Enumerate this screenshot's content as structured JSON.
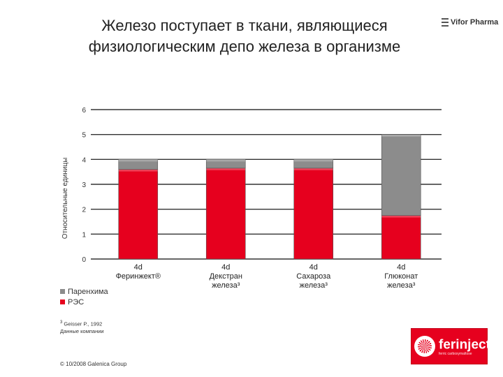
{
  "header": {
    "title_line1": "Железо поступает в ткани, являющиеся",
    "title_line2": "физиологическим депо железа в организме",
    "brand": "Vifor Pharma",
    "brand_icon": "menu-lines-icon"
  },
  "chart_data": {
    "type": "bar",
    "stacked": true,
    "ylabel": "Относительные единицы",
    "ylim": [
      0,
      6
    ],
    "yticks": [
      "0",
      "1",
      "2",
      "3",
      "4",
      "5",
      "6"
    ],
    "grid": true,
    "categories": [
      {
        "line1": "4d",
        "line2": "Феринжект®",
        "line3": ""
      },
      {
        "line1": "4d",
        "line2": "Декстран",
        "line3": "железа³"
      },
      {
        "line1": "4d",
        "line2": "Сахароза",
        "line3": "железа³"
      },
      {
        "line1": "4d",
        "line2": "Глюконат",
        "line3": "железа³"
      }
    ],
    "series": [
      {
        "name": "РЭС",
        "color": "#e6001e",
        "values": [
          3.6,
          3.65,
          3.65,
          1.75
        ]
      },
      {
        "name": "Паренхима",
        "color": "#8c8c8c",
        "values": [
          0.4,
          0.35,
          0.35,
          3.25
        ]
      }
    ],
    "legend_position": "bottom-left"
  },
  "legend": {
    "items": [
      {
        "label": "Паренхима",
        "color": "#8c8c8c"
      },
      {
        "label": "РЭС",
        "color": "#e6001e"
      }
    ]
  },
  "footnote": {
    "sup": "3",
    "line1": " Geisser P., 1992",
    "line2": "Данные компании"
  },
  "copyright": "© 10/2008 Galenica Group",
  "logo": {
    "word": "ferinject",
    "registered": "®",
    "sub": "ferric carboxymaltose",
    "emblem": "sunburst-emblem-icon"
  }
}
